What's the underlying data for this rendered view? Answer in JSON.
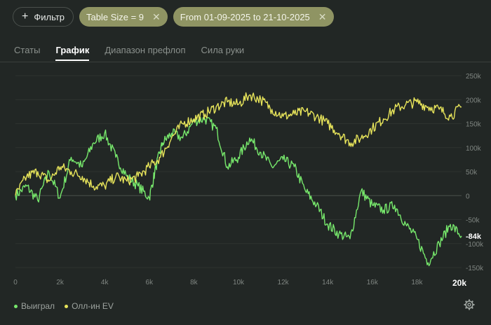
{
  "toolbar": {
    "filter_label": "Фильтр",
    "chips": [
      {
        "label": "Table Size = 9"
      },
      {
        "label": "From 01-09-2025 to 21-10-2025"
      }
    ]
  },
  "tabs": [
    {
      "label": "Статы",
      "active": false
    },
    {
      "label": "График",
      "active": true
    },
    {
      "label": "Диапазон префлоп",
      "active": false
    },
    {
      "label": "Сила руки",
      "active": false
    }
  ],
  "colors": {
    "won": "#77e86c",
    "ev": "#e6e35a"
  },
  "chart_data": {
    "type": "line",
    "xlim": [
      0,
      20000
    ],
    "ylim": [
      -150000,
      250000
    ],
    "x_ticks": [
      0,
      2000,
      4000,
      6000,
      8000,
      10000,
      12000,
      14000,
      16000,
      18000
    ],
    "x_tick_labels": [
      "0",
      "2k",
      "4k",
      "6k",
      "8k",
      "10k",
      "12k",
      "14k",
      "16k",
      "18k"
    ],
    "x_end_label": "20k",
    "y_ticks": [
      250000,
      200000,
      150000,
      100000,
      50000,
      0,
      -50000,
      -100000,
      -150000
    ],
    "y_tick_labels": [
      "250k",
      "200k",
      "150k",
      "100k",
      "50k",
      "0",
      "-50k",
      "-100k",
      "-150k"
    ],
    "current_value_label": "-84k",
    "current_value": -84000,
    "series": [
      {
        "name": "Выиграл",
        "x": [
          0,
          500,
          1000,
          1500,
          2000,
          2500,
          3000,
          3500,
          4000,
          4500,
          5000,
          5500,
          6000,
          6300,
          6600,
          7000,
          7500,
          8000,
          8500,
          9000,
          9500,
          10000,
          10500,
          11000,
          11500,
          12000,
          12500,
          13000,
          13500,
          14000,
          14500,
          15000,
          15500,
          16000,
          16500,
          17000,
          17500,
          18000,
          18500,
          19000,
          19500,
          20000
        ],
        "values": [
          0,
          20000,
          -10000,
          50000,
          -5000,
          80000,
          60000,
          110000,
          130000,
          80000,
          40000,
          20000,
          -5000,
          60000,
          110000,
          130000,
          120000,
          155000,
          160000,
          140000,
          60000,
          80000,
          120000,
          90000,
          60000,
          75000,
          60000,
          10000,
          -20000,
          -60000,
          -80000,
          -90000,
          10000,
          -20000,
          -30000,
          -20000,
          -60000,
          -90000,
          -140000,
          -100000,
          -60000,
          -84000
        ]
      },
      {
        "name": "Олл-ин EV",
        "x": [
          0,
          500,
          1000,
          1500,
          2000,
          2500,
          3000,
          3500,
          4000,
          4500,
          5000,
          5500,
          6000,
          6500,
          7000,
          7500,
          8000,
          8500,
          9000,
          9500,
          10000,
          10500,
          11000,
          11500,
          12000,
          12500,
          13000,
          13500,
          14000,
          14500,
          15000,
          15500,
          16000,
          16500,
          17000,
          17500,
          18000,
          18500,
          19000,
          19500,
          20000
        ],
        "values": [
          0,
          40000,
          50000,
          30000,
          60000,
          50000,
          40000,
          20000,
          20000,
          40000,
          30000,
          40000,
          60000,
          80000,
          120000,
          150000,
          160000,
          170000,
          185000,
          195000,
          190000,
          210000,
          200000,
          180000,
          165000,
          170000,
          175000,
          165000,
          150000,
          130000,
          110000,
          120000,
          140000,
          160000,
          180000,
          190000,
          195000,
          185000,
          180000,
          165000,
          185000
        ]
      }
    ]
  }
}
